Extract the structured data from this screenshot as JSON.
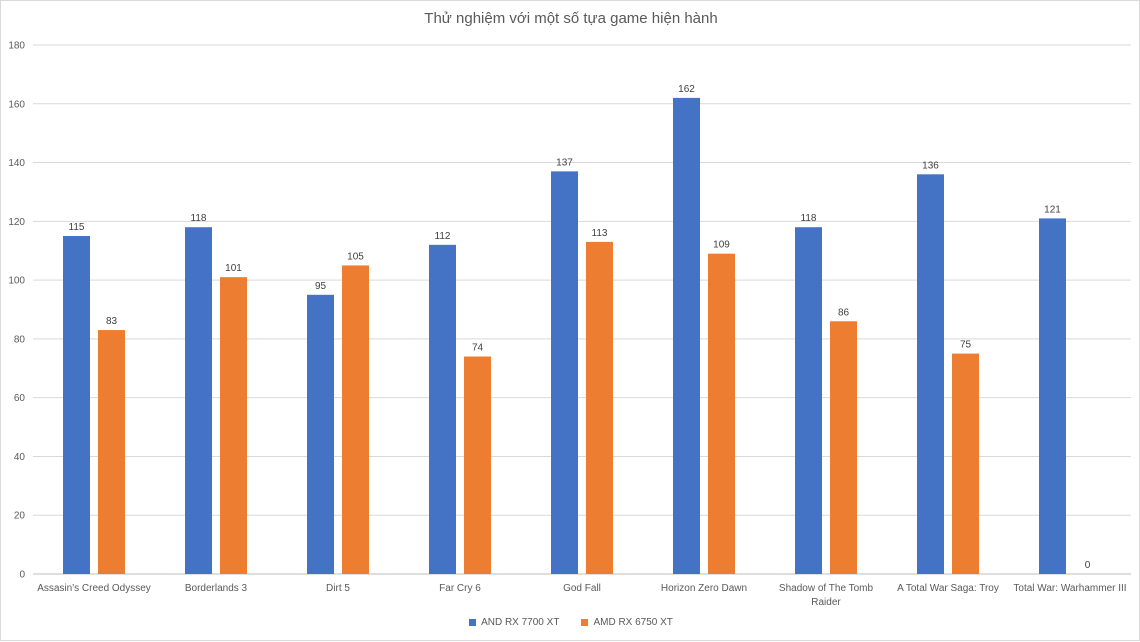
{
  "chart_data": {
    "type": "bar",
    "title": "Thử nghiệm với một số tựa game hiện hành",
    "categories": [
      [
        "Assasin's Creed Odyssey"
      ],
      [
        "Borderlands 3"
      ],
      [
        "Dirt 5"
      ],
      [
        "Far Cry 6"
      ],
      [
        "God Fall"
      ],
      [
        "Horizon Zero Dawn"
      ],
      [
        "Shadow of The Tomb",
        "Raider"
      ],
      [
        "A Total War Saga: Troy"
      ],
      [
        "Total War: Warhammer III"
      ]
    ],
    "series": [
      {
        "name": "AND RX 7700 XT",
        "color": "#4472c4",
        "values": [
          115,
          118,
          95,
          112,
          137,
          162,
          118,
          136,
          121
        ]
      },
      {
        "name": "AMD RX 6750 XT",
        "color": "#ed7d31",
        "values": [
          83,
          101,
          105,
          74,
          113,
          109,
          86,
          75,
          0
        ]
      }
    ],
    "ylim": [
      0,
      180
    ],
    "yticks": [
      0,
      20,
      40,
      60,
      80,
      100,
      120,
      140,
      160,
      180
    ],
    "grid": true,
    "legend": "bottom",
    "xlabel": "",
    "ylabel": ""
  }
}
